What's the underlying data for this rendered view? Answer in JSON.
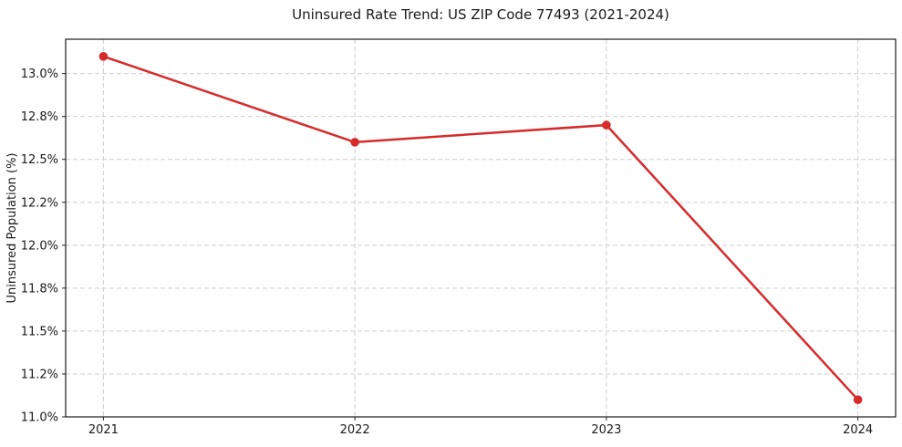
{
  "figure": {
    "background_color": "#ffffff",
    "text_color": "#1a1a1a"
  },
  "chart_data": {
    "type": "line",
    "title": "Uninsured Rate Trend: US ZIP Code 77493 (2021-2024)",
    "xlabel": "",
    "ylabel": "Uninsured Population (%)",
    "x": [
      2021,
      2022,
      2023,
      2024
    ],
    "x_tick_labels": [
      "2021",
      "2022",
      "2023",
      "2024"
    ],
    "values": [
      13.1,
      12.6,
      12.7,
      11.1
    ],
    "value_unit": "%",
    "y_ticks": {
      "values": [
        11.0,
        11.25,
        11.5,
        11.75,
        12.0,
        12.25,
        12.5,
        12.75,
        13.0
      ],
      "labels": [
        "11.0%",
        "11.2%",
        "11.5%",
        "11.8%",
        "12.0%",
        "12.2%",
        "12.5%",
        "12.8%",
        "13.0%"
      ]
    },
    "ylim": [
      11.0,
      13.2
    ],
    "xlim": [
      2020.85,
      2024.15
    ],
    "grid": "dashed, both axes, on",
    "legend_position": "none",
    "line_color": "#d62b2b",
    "marker": "circle",
    "marker_color": "#d62b2b"
  }
}
